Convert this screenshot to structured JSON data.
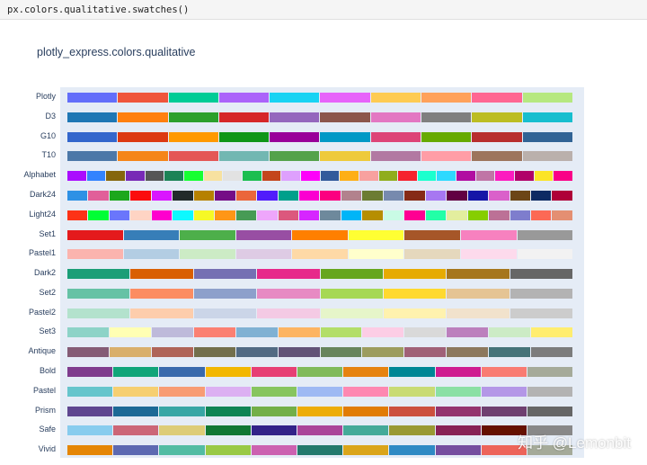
{
  "code": {
    "text": "px.colors.qualitative.swatches()"
  },
  "figure": {
    "title": "plotly_express.colors.qualitative"
  },
  "palettes": [
    {
      "name": "Plotly",
      "colors": [
        "#636EFA",
        "#EF553B",
        "#00CC96",
        "#AB63FA",
        "#19D3F3",
        "#E763FA",
        "#FECB52",
        "#FFA15A",
        "#FF6692",
        "#B6E880"
      ]
    },
    {
      "name": "D3",
      "colors": [
        "#1F77B4",
        "#FF7F0E",
        "#2CA02C",
        "#D62728",
        "#9467BD",
        "#8C564B",
        "#E377C2",
        "#7F7F7F",
        "#BCBD22",
        "#17BECF"
      ]
    },
    {
      "name": "G10",
      "colors": [
        "#3366CC",
        "#DC3912",
        "#FF9900",
        "#109618",
        "#990099",
        "#0099C6",
        "#DD4477",
        "#66AA00",
        "#B82E2E",
        "#316395"
      ]
    },
    {
      "name": "T10",
      "colors": [
        "#4C78A8",
        "#F58518",
        "#E45756",
        "#72B7B2",
        "#54A24B",
        "#EECA3B",
        "#B279A2",
        "#FF9DA6",
        "#9D755D",
        "#BAB0AC"
      ]
    },
    {
      "name": "Alphabet",
      "colors": [
        "#AA0DFE",
        "#3283FE",
        "#85660D",
        "#782AB6",
        "#565656",
        "#1C8356",
        "#16FF32",
        "#F7E1A0",
        "#E2E2E2",
        "#1CBE4F",
        "#C4451C",
        "#DEA0FD",
        "#FE00FA",
        "#325A9B",
        "#FEAF16",
        "#F8A19F",
        "#90AD1C",
        "#F6222E",
        "#1CFFCE",
        "#2ED9FF",
        "#B10DA1",
        "#C075A6",
        "#FC1CBF",
        "#B00068",
        "#FBE426",
        "#FA0087"
      ]
    },
    {
      "name": "Dark24",
      "colors": [
        "#2E91E5",
        "#E15F99",
        "#1CA71C",
        "#FB0D0D",
        "#DA16FF",
        "#222A2A",
        "#B68100",
        "#750D86",
        "#EB663B",
        "#511CFB",
        "#00A08B",
        "#FB00D1",
        "#FC0080",
        "#B2828D",
        "#6C7C32",
        "#778AAE",
        "#862A16",
        "#A777F1",
        "#620042",
        "#1616A7",
        "#DA60CA",
        "#6C4516",
        "#0D2A63",
        "#AF0038"
      ]
    },
    {
      "name": "Light24",
      "colors": [
        "#FD3216",
        "#00FE35",
        "#6A76FC",
        "#FED4C4",
        "#FE00CE",
        "#0DF9FF",
        "#F6F926",
        "#FF9616",
        "#479B55",
        "#EEA6FB",
        "#DC587D",
        "#D626FF",
        "#6E899C",
        "#00B5F7",
        "#B68E00",
        "#C9FBE5",
        "#FF0092",
        "#22FFA7",
        "#E3EE9E",
        "#86CE00",
        "#BC7196",
        "#7E7DCD",
        "#FC6955",
        "#E48F72"
      ]
    },
    {
      "name": "Set1",
      "colors": [
        "#E41A1C",
        "#377EB8",
        "#4DAF4A",
        "#984EA3",
        "#FF7F00",
        "#FFFF33",
        "#A65628",
        "#F781BF",
        "#999999"
      ]
    },
    {
      "name": "Pastel1",
      "colors": [
        "#FBB4AE",
        "#B3CDE3",
        "#CCEBC5",
        "#DECBE4",
        "#FED9A6",
        "#FFFFCC",
        "#E5D8BD",
        "#FDDAEC",
        "#F2F2F2"
      ]
    },
    {
      "name": "Dark2",
      "colors": [
        "#1B9E77",
        "#D95F02",
        "#7570B3",
        "#E7298A",
        "#66A61E",
        "#E6AB02",
        "#A6761D",
        "#666666"
      ]
    },
    {
      "name": "Set2",
      "colors": [
        "#66C2A5",
        "#FC8D62",
        "#8DA0CB",
        "#E78AC3",
        "#A6D854",
        "#FFD92F",
        "#E5C494",
        "#B3B3B3"
      ]
    },
    {
      "name": "Pastel2",
      "colors": [
        "#B3E2CD",
        "#FDCDAC",
        "#CBD5E8",
        "#F4CAE4",
        "#E6F5C9",
        "#FFF2AE",
        "#F1E2CC",
        "#CCCCCC"
      ]
    },
    {
      "name": "Set3",
      "colors": [
        "#8DD3C7",
        "#FFFFB3",
        "#BEBADA",
        "#FB8072",
        "#80B1D3",
        "#FDB462",
        "#B3DE69",
        "#FCCDE5",
        "#D9D9D9",
        "#BC80BD",
        "#CCEBC5",
        "#FFED6F"
      ]
    },
    {
      "name": "Antique",
      "colors": [
        "#855C75",
        "#D9AF6B",
        "#AF6458",
        "#736F4C",
        "#526A83",
        "#625377",
        "#68855C",
        "#9C9C5E",
        "#A06177",
        "#8C785D",
        "#467378",
        "#7C7C7C"
      ]
    },
    {
      "name": "Bold",
      "colors": [
        "#7F3C8D",
        "#11A579",
        "#3969AC",
        "#F2B701",
        "#E73F74",
        "#80BA5A",
        "#E68310",
        "#008695",
        "#CF1C90",
        "#F97B72",
        "#A5AA99"
      ]
    },
    {
      "name": "Pastel",
      "colors": [
        "#66C5CC",
        "#F6CF71",
        "#F89C74",
        "#DCB0F2",
        "#87C55F",
        "#9EB9F3",
        "#FE88B1",
        "#C9DB74",
        "#8BE0A4",
        "#B497E7",
        "#B3B3B3"
      ]
    },
    {
      "name": "Prism",
      "colors": [
        "#5F4690",
        "#1D6996",
        "#38A6A5",
        "#0F8554",
        "#73AF48",
        "#EDAD08",
        "#E17C05",
        "#CC503E",
        "#94346E",
        "#6F4070",
        "#666666"
      ]
    },
    {
      "name": "Safe",
      "colors": [
        "#88CCEE",
        "#CC6677",
        "#DDCC77",
        "#117733",
        "#332288",
        "#AA4499",
        "#44AA99",
        "#999933",
        "#882255",
        "#661100",
        "#888888"
      ]
    },
    {
      "name": "Vivid",
      "colors": [
        "#E58606",
        "#5D69B1",
        "#52BCA3",
        "#99C945",
        "#CC61B0",
        "#24796C",
        "#DAA51B",
        "#2F8AC4",
        "#764E9F",
        "#ED645A",
        "#A5AA99"
      ]
    }
  ],
  "watermark": {
    "text": "知乎 @Lemonbit"
  }
}
